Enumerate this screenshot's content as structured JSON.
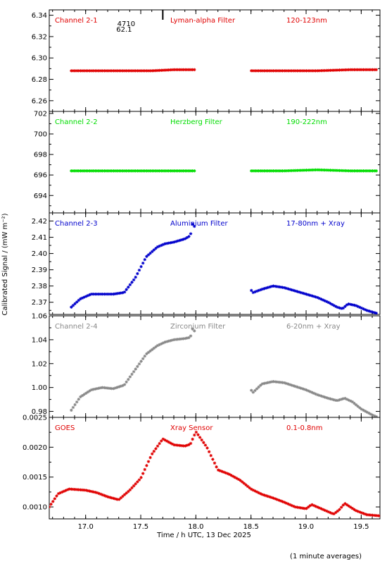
{
  "figure": {
    "ylabel": "Calibrated Signal / (mW m⁻²)",
    "xlabel": "Time / h UTC, 13 Dec 2025",
    "footnote": "(1 minute averages)",
    "marker_text_top": "4710",
    "marker_text_bottom": "62.1",
    "marker_time": 17.7
  },
  "chart_data": [
    {
      "type": "scatter",
      "channel": "Channel 2-1",
      "filter": "Lyman-alpha Filter",
      "band": "120-123nm",
      "color": "#e00000",
      "xlim": [
        16.67,
        19.67
      ],
      "ylim": [
        6.25,
        6.345
      ],
      "yticks": [
        6.26,
        6.28,
        6.3,
        6.32,
        6.34
      ],
      "ytick_labels": [
        "6.26",
        "6.28",
        "6.30",
        "6.32",
        "6.34"
      ],
      "x": [
        16.87,
        17.0,
        17.2,
        17.4,
        17.6,
        17.8,
        18.0,
        18.52,
        18.8,
        19.1,
        19.4,
        19.65
      ],
      "y": [
        6.288,
        6.288,
        6.288,
        6.288,
        6.288,
        6.289,
        6.289,
        6.288,
        6.288,
        6.288,
        6.289,
        6.289
      ]
    },
    {
      "type": "scatter",
      "channel": "Channel 2-2",
      "filter": "Herzberg Filter",
      "band": "190-222nm",
      "color": "#00dd00",
      "xlim": [
        16.67,
        19.67
      ],
      "ylim": [
        692.3,
        702.2
      ],
      "yticks": [
        694,
        696,
        698,
        700,
        702
      ],
      "ytick_labels": [
        "694",
        "696",
        "698",
        "700",
        "702"
      ],
      "x": [
        16.87,
        17.0,
        17.2,
        17.4,
        17.6,
        17.8,
        18.0,
        18.52,
        18.8,
        19.1,
        19.4,
        19.65
      ],
      "y": [
        696.4,
        696.4,
        696.4,
        696.4,
        696.4,
        696.4,
        696.4,
        696.4,
        696.4,
        696.5,
        696.4,
        696.4
      ]
    },
    {
      "type": "scatter",
      "channel": "Channel 2-3",
      "filter": "Aluminium Filter",
      "band": "17-80nm + Xray",
      "color": "#0000cc",
      "xlim": [
        16.67,
        19.67
      ],
      "ylim": [
        2.3625,
        2.425
      ],
      "yticks": [
        2.37,
        2.38,
        2.39,
        2.4,
        2.41,
        2.42
      ],
      "ytick_labels": [
        "2.37",
        "2.38",
        "2.39",
        "2.40",
        "2.41",
        "2.42"
      ],
      "x": [
        16.87,
        16.95,
        17.05,
        17.15,
        17.25,
        17.35,
        17.45,
        17.55,
        17.65,
        17.72,
        17.8,
        17.9,
        17.95,
        17.97,
        18.52,
        18.6,
        18.7,
        18.8,
        18.9,
        19.0,
        19.1,
        19.2,
        19.28,
        19.33,
        19.38,
        19.45,
        19.55,
        19.65
      ],
      "y": [
        2.367,
        2.372,
        2.375,
        2.375,
        2.375,
        2.376,
        2.385,
        2.398,
        2.404,
        2.406,
        2.407,
        2.409,
        2.411,
        2.418,
        2.376,
        2.378,
        2.38,
        2.379,
        2.377,
        2.375,
        2.373,
        2.37,
        2.367,
        2.366,
        2.369,
        2.368,
        2.365,
        2.363
      ]
    },
    {
      "type": "scatter",
      "channel": "Channel 2-4",
      "filter": "Zirconium Filter",
      "band": "6-20nm + Xray",
      "color": "#888888",
      "xlim": [
        16.67,
        19.67
      ],
      "ylim": [
        0.975,
        1.06
      ],
      "yticks": [
        0.98,
        1.0,
        1.02,
        1.04,
        1.06
      ],
      "ytick_labels": [
        "0.98",
        "1.00",
        "1.02",
        "1.04",
        "1.06"
      ],
      "x": [
        16.87,
        16.95,
        17.05,
        17.15,
        17.25,
        17.35,
        17.45,
        17.55,
        17.65,
        17.72,
        17.8,
        17.9,
        17.95,
        17.97,
        18.52,
        18.6,
        18.7,
        18.8,
        18.9,
        19.0,
        19.1,
        19.2,
        19.28,
        19.35,
        19.42,
        19.5,
        19.6,
        19.65
      ],
      "y": [
        0.981,
        0.992,
        0.998,
        1.0,
        0.999,
        1.002,
        1.015,
        1.028,
        1.035,
        1.038,
        1.04,
        1.041,
        1.042,
        1.049,
        0.996,
        1.003,
        1.005,
        1.004,
        1.001,
        0.998,
        0.994,
        0.991,
        0.989,
        0.991,
        0.988,
        0.982,
        0.977,
        0.975
      ]
    },
    {
      "type": "scatter",
      "channel": "GOES",
      "filter": "Xray Sensor",
      "band": "0.1-0.8nm",
      "color": "#e00000",
      "xlim": [
        16.67,
        19.67
      ],
      "ylim": [
        0.0008,
        0.0025
      ],
      "yticks": [
        0.001,
        0.0015,
        0.002,
        0.0025
      ],
      "ytick_labels": [
        "0.0010",
        "0.0015",
        "0.0020",
        "0.0025"
      ],
      "x": [
        16.67,
        16.75,
        16.85,
        17.0,
        17.1,
        17.2,
        17.3,
        17.4,
        17.5,
        17.6,
        17.7,
        17.8,
        17.9,
        17.95,
        18.0,
        18.1,
        18.2,
        18.3,
        18.4,
        18.5,
        18.6,
        18.7,
        18.8,
        18.9,
        19.0,
        19.05,
        19.15,
        19.25,
        19.3,
        19.35,
        19.45,
        19.55,
        19.67
      ],
      "y": [
        0.001,
        0.00122,
        0.0013,
        0.00128,
        0.00124,
        0.00117,
        0.00112,
        0.00128,
        0.00148,
        0.00188,
        0.00214,
        0.00204,
        0.00202,
        0.00205,
        0.00226,
        0.002,
        0.00162,
        0.00155,
        0.00145,
        0.0013,
        0.00121,
        0.00115,
        0.00108,
        0.001,
        0.00097,
        0.00104,
        0.00096,
        0.00088,
        0.00095,
        0.00106,
        0.00094,
        0.00087,
        0.00085
      ]
    }
  ],
  "xaxis": {
    "ticks": [
      17.0,
      17.5,
      18.0,
      18.5,
      19.0,
      19.5
    ],
    "tick_labels": [
      "17.0",
      "17.5",
      "18.0",
      "18.5",
      "19.0",
      "19.5"
    ]
  }
}
